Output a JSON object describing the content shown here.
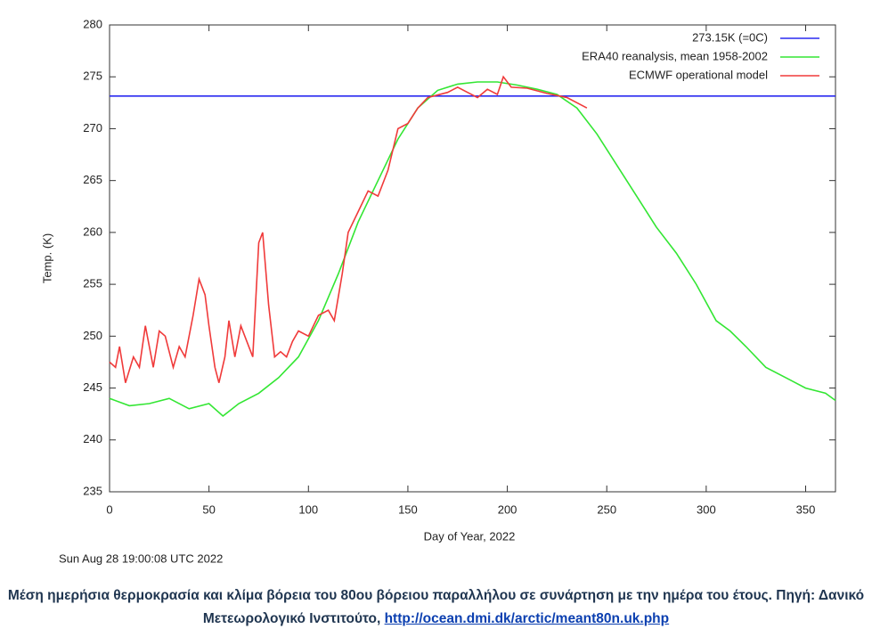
{
  "chart_data": {
    "type": "line",
    "xlabel": "Day of Year, 2022",
    "ylabel": "Temp. (K)",
    "timestamp": "Sun Aug 28 19:00:08 UTC 2022",
    "xlim": [
      0,
      365
    ],
    "xticks": [
      0,
      50,
      100,
      150,
      200,
      250,
      300,
      350
    ],
    "ylim": [
      235,
      280
    ],
    "yticks": [
      235,
      240,
      245,
      250,
      255,
      260,
      265,
      270,
      275,
      280
    ],
    "legend": "upper right",
    "series": [
      {
        "name": "273.15K (=0C)",
        "color": "#2a2af0",
        "x": [
          0,
          365
        ],
        "values": [
          273.15,
          273.15
        ]
      },
      {
        "name": "ERA40 reanalysis, mean 1958-2002",
        "color": "#33e633",
        "x": [
          0,
          10,
          20,
          30,
          40,
          50,
          57,
          65,
          75,
          85,
          95,
          105,
          115,
          125,
          135,
          145,
          155,
          165,
          175,
          185,
          195,
          205,
          215,
          225,
          235,
          245,
          255,
          265,
          275,
          285,
          295,
          305,
          312,
          320,
          330,
          340,
          350,
          360,
          365
        ],
        "values": [
          244,
          243.3,
          243.5,
          244,
          243,
          243.5,
          242.3,
          243.5,
          244.5,
          246,
          248,
          251.5,
          256,
          261,
          265,
          269,
          272,
          273.7,
          274.3,
          274.5,
          274.5,
          274.2,
          273.8,
          273.3,
          272,
          269.5,
          266.5,
          263.5,
          260.5,
          258,
          255,
          251.5,
          250.5,
          249,
          247,
          246,
          245,
          244.5,
          243.8
        ]
      },
      {
        "name": "ECMWF operational model",
        "color": "#f03a3a",
        "x": [
          0,
          3,
          5,
          8,
          12,
          15,
          18,
          22,
          25,
          28,
          32,
          35,
          38,
          42,
          45,
          48,
          50,
          53,
          55,
          58,
          60,
          63,
          66,
          69,
          72,
          75,
          77,
          80,
          83,
          86,
          89,
          92,
          95,
          100,
          105,
          110,
          113,
          117,
          120,
          125,
          130,
          135,
          140,
          145,
          150,
          155,
          160,
          170,
          175,
          180,
          185,
          190,
          195,
          198,
          202,
          210,
          220,
          230,
          235,
          240
        ],
        "values": [
          247.5,
          247,
          249,
          245.5,
          248,
          247,
          251,
          247,
          250.5,
          250,
          247,
          249,
          248,
          252,
          255.5,
          254,
          251,
          247,
          245.5,
          248,
          251.5,
          248,
          251,
          249.5,
          248,
          259,
          260,
          253,
          248,
          248.5,
          248,
          249.5,
          250.5,
          250,
          252,
          252.5,
          251.5,
          256,
          260,
          262,
          264,
          263.5,
          266,
          270,
          270.5,
          272,
          273,
          273.5,
          274,
          273.5,
          273,
          273.8,
          273.3,
          275,
          274,
          273.9,
          273.4,
          273,
          272.5,
          272
        ]
      }
    ]
  },
  "caption": {
    "text": "Μέση ημερήσια θερμοκρασία και κλίμα βόρεια του 80ου βόρειου παραλλήλου σε συνάρτηση με την ημέρα του έτους. Πηγή: Δανικό Μετεωρολογικό Ινστιτούτο,",
    "link": "http://ocean.dmi.dk/arctic/meant80n.uk.php"
  }
}
